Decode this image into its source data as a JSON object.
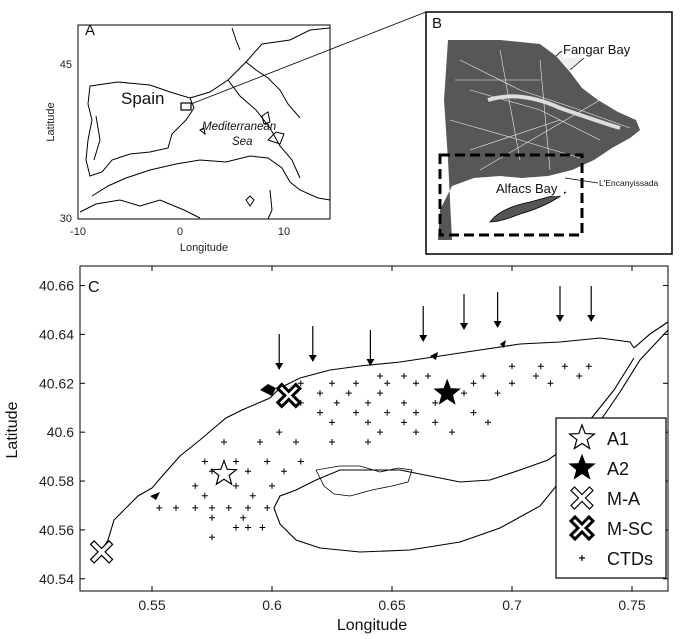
{
  "panel_a": {
    "letter": "A",
    "ylabel": "Latitude",
    "xlabel": "Longitude",
    "yticks": [
      "45",
      "30"
    ],
    "xticks": [
      "-10",
      "0",
      "10"
    ],
    "country_label": "Spain",
    "sea_label_line1": "Mediterranean",
    "sea_label_line2": "Sea"
  },
  "panel_b": {
    "letter": "B",
    "fangar_label": "Fangar Bay",
    "alfacs_label": "Alfacs Bay",
    "encanyissada_label": "L'Encanyissada"
  },
  "panel_c": {
    "letter": "C",
    "ylabel": "Latitude",
    "xlabel": "Longitude",
    "yticks": [
      "40.66",
      "40.64",
      "40.62",
      "40.6",
      "40.58",
      "40.56",
      "40.54"
    ],
    "xticks": [
      "0.55",
      "0.6",
      "0.65",
      "0.7",
      "0.75"
    ],
    "legend": [
      {
        "symbol": "open-star",
        "label": "A1"
      },
      {
        "symbol": "filled-star",
        "label": "A2"
      },
      {
        "symbol": "thin-x",
        "label": "M-A"
      },
      {
        "symbol": "bold-x",
        "label": "M-SC"
      },
      {
        "symbol": "plus",
        "label": "CTDs"
      }
    ],
    "stations": {
      "A1": {
        "lon": 0.58,
        "lat": 40.583
      },
      "A2": {
        "lon": 0.673,
        "lat": 40.616
      },
      "M-A": {
        "lon": 0.529,
        "lat": 40.551
      },
      "M-SC": {
        "lon": 0.607,
        "lat": 40.615
      }
    },
    "arrows_lon": [
      0.603,
      0.617,
      0.641,
      0.663,
      0.68,
      0.694,
      0.72,
      0.733
    ]
  }
}
